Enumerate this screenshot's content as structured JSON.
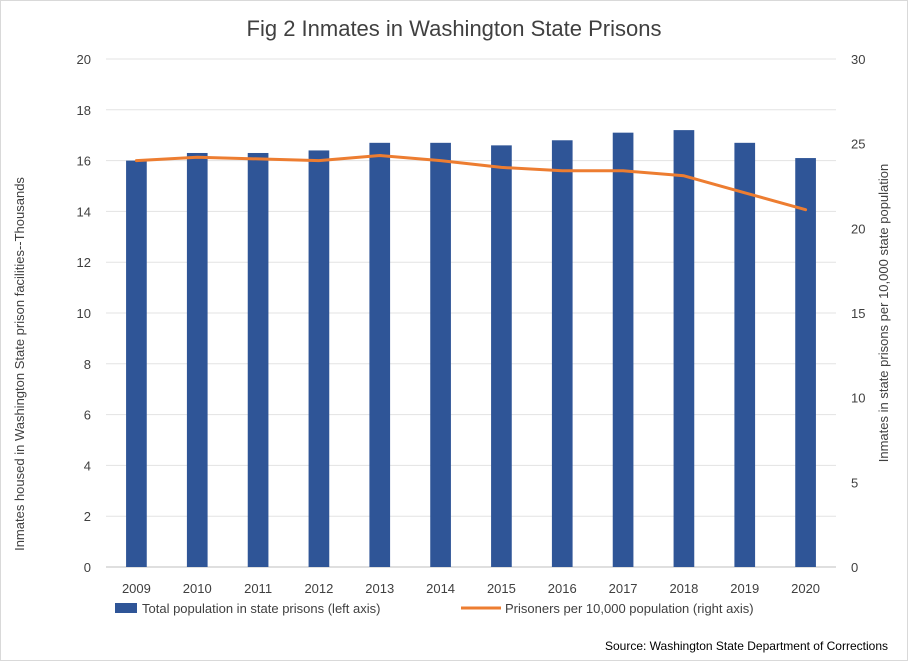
{
  "chart_data": {
    "type": "bar",
    "title": "Fig 2 Inmates in Washington State Prisons",
    "categories": [
      "2009",
      "2010",
      "2011",
      "2012",
      "2013",
      "2014",
      "2015",
      "2016",
      "2017",
      "2018",
      "2019",
      "2020"
    ],
    "y_left": {
      "label": "Inmates housed in Washington State prison facilities--Thousands",
      "ylim": [
        0,
        20
      ],
      "ticks": [
        0,
        2,
        4,
        6,
        8,
        10,
        12,
        14,
        16,
        18,
        20
      ]
    },
    "y_right": {
      "label": "Inmates in state prisons per 10,000 state population",
      "ylim": [
        0,
        30
      ],
      "ticks": [
        0,
        5,
        10,
        15,
        20,
        25,
        30
      ]
    },
    "series": [
      {
        "name": "Total population in state prisons (left axis)",
        "type": "bar",
        "axis": "left",
        "color": "#2f5597",
        "values": [
          16.0,
          16.3,
          16.3,
          16.4,
          16.7,
          16.7,
          16.6,
          16.8,
          17.1,
          17.2,
          16.7,
          16.1
        ]
      },
      {
        "name": "Prisoners per 10,000 population (right axis)",
        "type": "line",
        "axis": "right",
        "color": "#ed7d31",
        "values": [
          24.0,
          24.2,
          24.1,
          24.0,
          24.3,
          24.0,
          23.6,
          23.4,
          23.4,
          23.1,
          22.1,
          21.1
        ]
      }
    ],
    "grid": true,
    "legend_position": "bottom",
    "source": "Source: Washington State Department of Corrections"
  }
}
